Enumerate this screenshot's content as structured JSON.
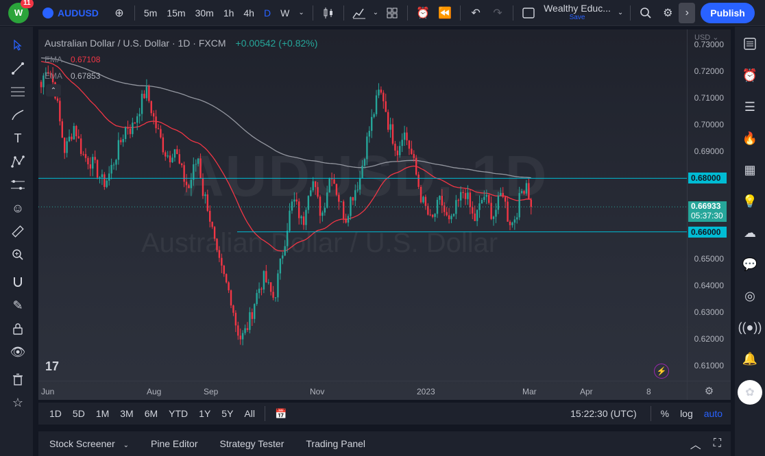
{
  "topbar": {
    "notification_count": "11",
    "logo_text": "W",
    "symbol": "AUDUSD",
    "intervals": [
      "5m",
      "15m",
      "30m",
      "1h",
      "4h",
      "D",
      "W"
    ],
    "active_interval": "D",
    "layout_name": "Wealthy Educ...",
    "layout_save": "Save",
    "publish_label": "Publish"
  },
  "chart": {
    "title": "Australian Dollar / U.S. Dollar · 1D · FXCM",
    "change": "+0.00542 (+0.82%)",
    "ema1_label": "EMA",
    "ema1_value": "0.67108",
    "ema2_label": "EMA",
    "ema2_value": "0.67853",
    "watermark_symbol": "AUDUSD, 1D",
    "watermark_description": "Australian Dollar / U.S. Dollar",
    "currency": "USD",
    "current_price": "0.66933",
    "countdown": "05:37:30",
    "level_high": "0.68000",
    "level_low": "0.66000",
    "colors": {
      "up": "#26a69a",
      "down": "#f23645",
      "ema_fast": "#f23645",
      "ema_slow": "#9598a1",
      "hline": "#00bcd4",
      "price_tag": "#26a69a",
      "level_tag": "#00bcd4"
    }
  },
  "chart_data": {
    "type": "candlestick",
    "ylim": [
      0.6045,
      0.7355
    ],
    "y_ticks": [
      "0.73000",
      "0.72000",
      "0.71000",
      "0.70000",
      "0.69000",
      "0.68000",
      "0.67000",
      "0.66000",
      "0.65000",
      "0.64000",
      "0.63000",
      "0.62000",
      "0.61000"
    ],
    "x_ticks": [
      "Jun",
      "Aug",
      "Sep",
      "Nov",
      "2023",
      "Mar",
      "Apr",
      "8"
    ],
    "horizontal_lines": [
      0.68,
      0.66
    ],
    "last_price": 0.66933,
    "price_path": [
      0.714,
      0.722,
      0.719,
      0.712,
      0.7,
      0.69,
      0.695,
      0.7,
      0.693,
      0.688,
      0.687,
      0.685,
      0.682,
      0.678,
      0.68,
      0.685,
      0.69,
      0.695,
      0.7,
      0.698,
      0.703,
      0.708,
      0.713,
      0.707,
      0.7,
      0.695,
      0.69,
      0.688,
      0.692,
      0.685,
      0.68,
      0.676,
      0.683,
      0.688,
      0.675,
      0.67,
      0.66,
      0.65,
      0.645,
      0.64,
      0.635,
      0.625,
      0.62,
      0.623,
      0.628,
      0.635,
      0.64,
      0.643,
      0.638,
      0.635,
      0.645,
      0.655,
      0.665,
      0.672,
      0.668,
      0.662,
      0.675,
      0.68,
      0.672,
      0.666,
      0.675,
      0.683,
      0.676,
      0.67,
      0.665,
      0.672,
      0.676,
      0.68,
      0.69,
      0.698,
      0.705,
      0.712,
      0.71,
      0.7,
      0.695,
      0.69,
      0.698,
      0.694,
      0.688,
      0.68,
      0.672,
      0.668,
      0.663,
      0.668,
      0.672,
      0.666,
      0.662,
      0.668,
      0.672,
      0.676,
      0.67,
      0.664,
      0.668,
      0.674,
      0.67,
      0.666,
      0.67,
      0.676,
      0.666,
      0.663,
      0.668,
      0.675,
      0.679,
      0.669
    ]
  },
  "time_display": "15:22:30 (UTC)",
  "ranges": [
    "1D",
    "5D",
    "1M",
    "3M",
    "6M",
    "YTD",
    "1Y",
    "5Y",
    "All"
  ],
  "range_right": {
    "percent": "%",
    "log": "log",
    "auto": "auto"
  },
  "bottom_tabs": [
    "Stock Screener",
    "Pine Editor",
    "Strategy Tester",
    "Trading Panel"
  ]
}
